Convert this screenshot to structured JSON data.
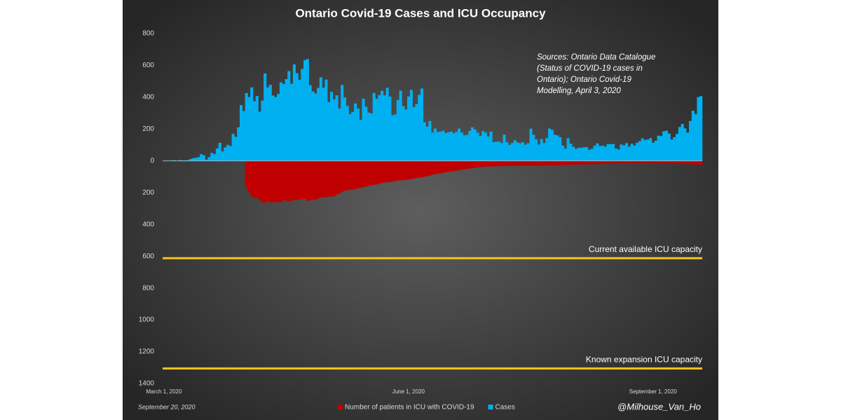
{
  "chart_data": {
    "type": "bar",
    "title": "Ontario Covid-19 Cases and ICU Occupancy",
    "annotation": [
      "Sources: Ontario Data Catalogue",
      "(Status of COVID-19 cases in",
      "Ontario); Ontario Covid-19",
      "Modelling, April 3, 2020"
    ],
    "footnote_left": "September 20, 2020",
    "footnote_right": "@Milhouse_Van_Ho",
    "categories": [
      "March 1, 2020",
      null,
      null,
      null,
      null,
      null,
      null,
      null,
      null,
      null,
      null,
      null,
      null,
      null,
      null,
      null,
      null,
      null,
      null,
      null,
      null,
      null,
      null,
      null,
      null,
      null,
      null,
      null,
      null,
      null,
      null,
      null,
      null,
      null,
      null,
      null,
      null,
      null,
      null,
      null,
      null,
      null,
      null,
      null,
      null,
      null,
      null,
      null,
      null,
      null,
      null,
      null,
      null,
      null,
      null,
      null,
      null,
      null,
      null,
      null,
      null,
      null,
      null,
      null,
      null,
      null,
      null,
      null,
      null,
      null,
      null,
      null,
      null,
      null,
      null,
      null,
      null,
      null,
      null,
      null,
      null,
      null,
      null,
      null,
      null,
      null,
      null,
      null,
      null,
      null,
      null,
      null,
      "June 1, 2020",
      null,
      null,
      null,
      null,
      null,
      null,
      null,
      null,
      null,
      null,
      null,
      null,
      null,
      null,
      null,
      null,
      null,
      null,
      null,
      null,
      null,
      null,
      null,
      null,
      null,
      null,
      null,
      null,
      null,
      null,
      null,
      null,
      null,
      null,
      null,
      null,
      null,
      null,
      null,
      null,
      null,
      null,
      null,
      null,
      null,
      null,
      null,
      null,
      null,
      null,
      null,
      null,
      null,
      null,
      null,
      null,
      null,
      null,
      null,
      null,
      null,
      null,
      null,
      null,
      null,
      null,
      null,
      null,
      null,
      null,
      null,
      null,
      null,
      null,
      null,
      null,
      null,
      null,
      null,
      null,
      null,
      null,
      null,
      null,
      null,
      null,
      null,
      null,
      null,
      null,
      null,
      "September 1, 2020",
      null,
      null,
      null,
      null,
      null,
      null,
      null,
      null,
      null,
      null,
      null,
      null,
      null,
      null,
      null,
      null,
      null,
      null
    ],
    "series": [
      {
        "name": "Number of patients in ICU with COVID-19",
        "color": "#c00000",
        "values": [
          null,
          null,
          null,
          null,
          null,
          null,
          null,
          null,
          null,
          null,
          null,
          null,
          null,
          null,
          null,
          null,
          null,
          null,
          null,
          null,
          null,
          null,
          null,
          null,
          null,
          null,
          null,
          null,
          null,
          null,
          null,
          -167,
          -196,
          -224,
          -231,
          -234,
          -246,
          -260,
          -263,
          -255,
          -259,
          -260,
          -258,
          -262,
          -259,
          -247,
          -252,
          -255,
          -250,
          -245,
          -247,
          -243,
          -241,
          -238,
          -252,
          -248,
          -244,
          -244,
          -237,
          -229,
          -229,
          -227,
          -224,
          -225,
          -220,
          -212,
          -207,
          -195,
          -188,
          -185,
          -182,
          -181,
          -176,
          -173,
          -169,
          -166,
          -160,
          -157,
          -152,
          -150,
          -148,
          -144,
          -138,
          -135,
          -135,
          -133,
          -130,
          -126,
          -124,
          -123,
          -121,
          -120,
          -118,
          -115,
          -110,
          -108,
          -105,
          -102,
          -100,
          -96,
          -93,
          -87,
          -84,
          -80,
          -78,
          -76,
          -72,
          -70,
          -66,
          -64,
          -62,
          -58,
          -55,
          -53,
          -50,
          -48,
          -45,
          -44,
          -42,
          -40,
          -38,
          -37,
          -36,
          -35,
          -35,
          -34,
          -33,
          -33,
          -32,
          -32,
          -31,
          -31,
          -31,
          -30,
          -30,
          -30,
          -30,
          -31,
          -31,
          -31,
          -32,
          -30,
          -30,
          -30,
          -29,
          -29,
          -28,
          -28,
          -27,
          -27,
          -26,
          -26,
          -25,
          -25,
          -24,
          -24,
          -23,
          -23,
          -22,
          -22,
          -21,
          -21,
          -20,
          -20,
          -19,
          -19,
          -18,
          -18,
          -18,
          -17,
          -17,
          -16,
          -16,
          -16,
          -15,
          -15,
          -15,
          -14,
          -14,
          -14,
          -14,
          -13,
          -13,
          -13,
          -13,
          -14,
          -14,
          -15,
          -15,
          -16,
          -16,
          -17,
          -17,
          -18,
          -18,
          -19,
          -20,
          -20,
          -21,
          -22,
          -23,
          -25,
          -27
        ]
      },
      {
        "name": "Cases",
        "color": "#00b0f0",
        "values": [
          1,
          2,
          0,
          3,
          4,
          1,
          5,
          3,
          4,
          4,
          12,
          17,
          20,
          23,
          42,
          35,
          8,
          24,
          50,
          43,
          78,
          114,
          60,
          85,
          100,
          93,
          170,
          151,
          211,
          351,
          313,
          426,
          401,
          462,
          375,
          408,
          309,
          379,
          550,
          462,
          478,
          411,
          401,
          421,
          494,
          483,
          514,
          564,
          485,
          606,
          551,
          510,
          578,
          634,
          640,
          476,
          437,
          424,
          459,
          525,
          460,
          511,
          370,
          434,
          387,
          412,
          329,
          477,
          399,
          346,
          294,
          308,
          361,
          329,
          258,
          391,
          340,
          304,
          298,
          427,
          390,
          413,
          441,
          412,
          460,
          404,
          287,
          292,
          383,
          441,
          344,
          323,
          404,
          446,
          338,
          356,
          415,
          455,
          243,
          215,
          251,
          178,
          203,
          182,
          184,
          190,
          175,
          180,
          184,
          173,
          182,
          203,
          178,
          161,
          163,
          189,
          211,
          197,
          178,
          157,
          187,
          178,
          153,
          184,
          118,
          120,
          121,
          112,
          165,
          118,
          101,
          112,
          129,
          116,
          111,
          117,
          102,
          111,
          203,
          164,
          135,
          103,
          137,
          112,
          144,
          203,
          195,
          165,
          160,
          149,
          96,
          77,
          143,
          108,
          89,
          76,
          82,
          83,
          85,
          87,
          70,
          76,
          95,
          110,
          94,
          95,
          90,
          105,
          105,
          106,
          78,
          72,
          103,
          98,
          112,
          90,
          108,
          97,
          114,
          124,
          142,
          131,
          134,
          143,
          114,
          127,
          158,
          157,
          186,
          190,
          172,
          134,
          149,
          170,
          213,
          232,
          204,
          178,
          251,
          315,
          293,
          401,
          407
        ]
      }
    ],
    "reference_lines": [
      {
        "label": "Current available ICU capacity",
        "value": -612,
        "color": "#f5c518"
      },
      {
        "label": "Known expansion ICU capacity",
        "value": -1305,
        "color": "#f5c518"
      }
    ],
    "ylim": [
      -1400,
      800
    ],
    "yticks": [
      800,
      600,
      400,
      200,
      0,
      {
        "value": -200,
        "label": "200"
      },
      {
        "value": -400,
        "label": "400"
      },
      {
        "value": -600,
        "label": "600"
      },
      {
        "value": -800,
        "label": "800"
      },
      {
        "value": -1000,
        "label": "1000"
      },
      {
        "value": -1200,
        "label": "1200"
      },
      {
        "value": -1400,
        "label": "1400"
      }
    ]
  }
}
